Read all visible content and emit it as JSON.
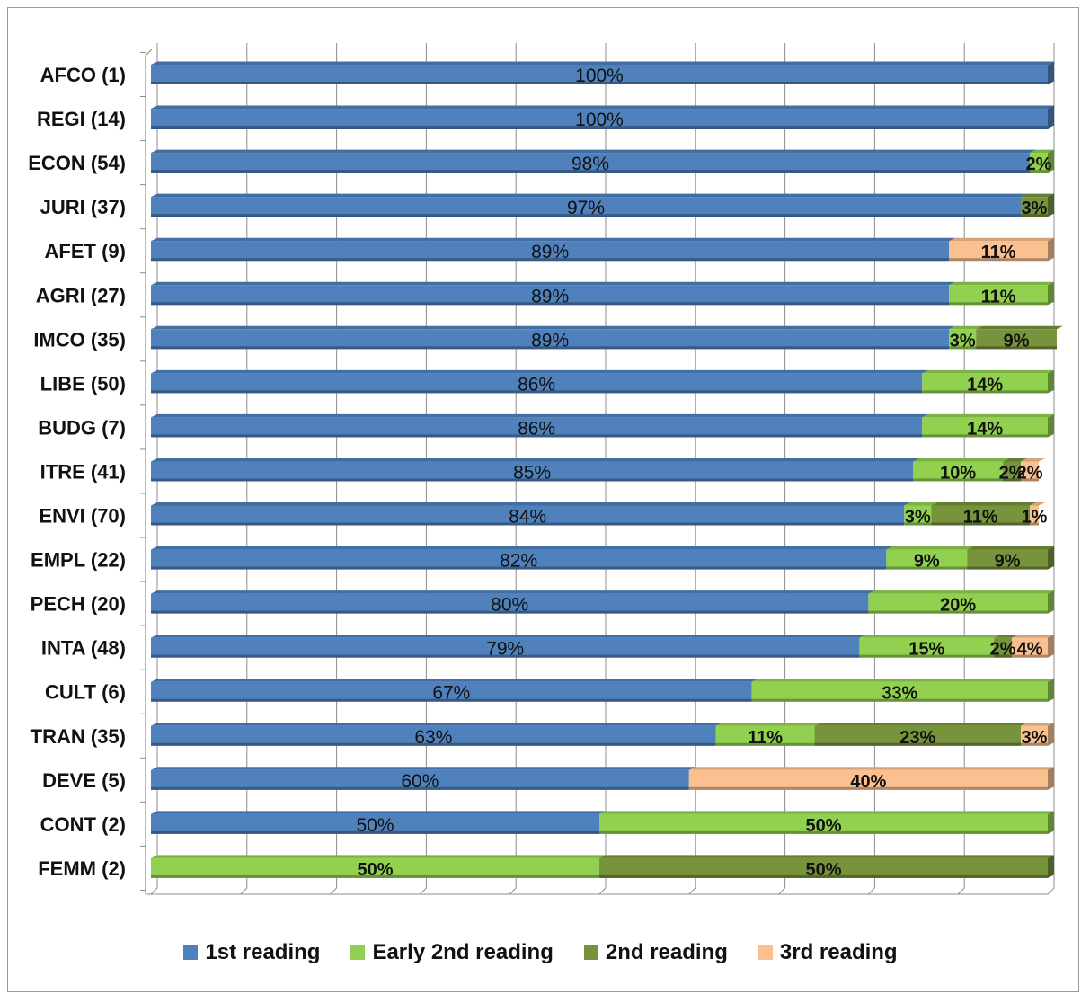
{
  "chart_data": {
    "type": "bar",
    "orientation": "horizontal",
    "stacked": "percent",
    "categories": [
      "AFCO (1)",
      "REGI (14)",
      "ECON (54)",
      "JURI (37)",
      "AFET (9)",
      "AGRI (27)",
      "IMCO (35)",
      "LIBE (50)",
      "BUDG (7)",
      "ITRE (41)",
      "ENVI (70)",
      "EMPL (22)",
      "PECH (20)",
      "INTA (48)",
      "CULT (6)",
      "TRAN (35)",
      "DEVE (5)",
      "CONT (2)",
      "FEMM (2)"
    ],
    "series": [
      {
        "name": "1st reading",
        "color": "#4f81bd",
        "values": [
          100,
          100,
          98,
          97,
          89,
          89,
          89,
          86,
          86,
          85,
          84,
          82,
          80,
          79,
          67,
          63,
          60,
          50,
          0
        ],
        "labels": [
          "100%",
          "100%",
          "98%",
          "97%",
          "89%",
          "89%",
          "89%",
          "86%",
          "86%",
          "85%",
          "84%",
          "82%",
          "80%",
          "79%",
          "67%",
          "63%",
          "60%",
          "50%",
          ""
        ]
      },
      {
        "name": "Early 2nd reading",
        "color": "#92d050",
        "values": [
          0,
          0,
          2,
          0,
          0,
          11,
          3,
          14,
          14,
          10,
          3,
          9,
          20,
          15,
          33,
          11,
          0,
          50,
          50
        ],
        "labels": [
          "",
          "",
          "2%",
          "",
          "",
          "11%",
          "3%",
          "14%",
          "14%",
          "10%",
          "3%",
          "9%",
          "20%",
          "15%",
          "33%",
          "11%",
          "",
          "50%",
          "50%"
        ]
      },
      {
        "name": "2nd reading",
        "color": "#77933c",
        "values": [
          0,
          0,
          0,
          3,
          0,
          0,
          9,
          0,
          0,
          2,
          11,
          9,
          0,
          2,
          0,
          23,
          0,
          0,
          50
        ],
        "labels": [
          "",
          "",
          "",
          "3%",
          "",
          "",
          "9%",
          "",
          "",
          "2%",
          "11%",
          "9%",
          "",
          "2%",
          "",
          "23%",
          "",
          "",
          "50%"
        ]
      },
      {
        "name": "3rd reading",
        "color": "#fac090",
        "values": [
          0,
          0,
          0,
          0,
          11,
          0,
          0,
          0,
          0,
          2,
          1,
          0,
          0,
          4,
          0,
          3,
          40,
          0,
          0
        ],
        "labels": [
          "",
          "",
          "",
          "",
          "11%",
          "",
          "",
          "",
          "",
          "2%",
          "1%",
          "",
          "",
          "4%",
          "",
          "3%",
          "40%",
          "",
          ""
        ]
      }
    ],
    "xlim": [
      0,
      100
    ],
    "gridlines": 10,
    "grid": true,
    "legend_position": "bottom"
  }
}
